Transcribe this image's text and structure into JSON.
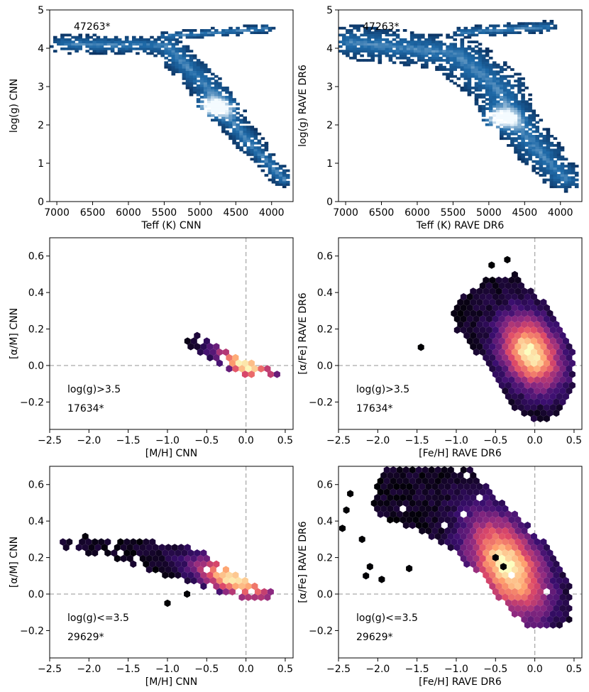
{
  "chart_data": [
    {
      "id": "hrd_cnn",
      "type": "heatmap",
      "xlabel": "Teff (K) CNN",
      "ylabel": "log(g) CNN",
      "xlim": [
        7100,
        3700
      ],
      "ylim": [
        5,
        0
      ],
      "xticks": [
        7000,
        6500,
        6000,
        5500,
        5000,
        4500,
        4000
      ],
      "xticklabels": [
        "7000",
        "6500",
        "6000",
        "5500",
        "5000",
        "4500",
        "4000"
      ],
      "yticks": [
        0,
        1,
        2,
        3,
        4,
        5
      ],
      "yticklabels": [
        "0",
        "1",
        "2",
        "3",
        "4",
        "5"
      ],
      "annotations": [
        "47263*"
      ],
      "colormap": [
        "#0a2e5c",
        "#1f6aa8",
        "#f4fbff"
      ],
      "spine_segments": [
        {
          "t0": 6900,
          "g0": 4.15,
          "t1": 5500,
          "g1": 4.1,
          "w": 0.25
        },
        {
          "t0": 5500,
          "g0": 4.1,
          "t1": 4900,
          "g1": 3.0,
          "w": 0.28
        },
        {
          "t0": 4900,
          "g0": 3.0,
          "t1": 4700,
          "g1": 2.4,
          "w": 0.3
        },
        {
          "t0": 4700,
          "g0": 2.4,
          "t1": 4300,
          "g1": 1.5,
          "w": 0.22
        },
        {
          "t0": 4300,
          "g0": 1.5,
          "t1": 3850,
          "g1": 0.6,
          "w": 0.18
        },
        {
          "t0": 5500,
          "g0": 4.35,
          "t1": 4100,
          "g1": 4.55,
          "w": 0.12
        }
      ],
      "peak": {
        "teff": 4820,
        "logg": 2.48
      }
    },
    {
      "id": "hrd_rave",
      "type": "heatmap",
      "xlabel": "Teff (K) RAVE DR6",
      "ylabel": "log(g) RAVE DR6",
      "xlim": [
        7100,
        3700
      ],
      "ylim": [
        5,
        0
      ],
      "xticks": [
        7000,
        6500,
        6000,
        5500,
        5000,
        4500,
        4000
      ],
      "xticklabels": [
        "7000",
        "6500",
        "6000",
        "5500",
        "5000",
        "4500",
        "4000"
      ],
      "yticks": [
        0,
        1,
        2,
        3,
        4,
        5
      ],
      "yticklabels": [
        "0",
        "1",
        "2",
        "3",
        "4",
        "5"
      ],
      "annotations": [
        "47263*"
      ],
      "colormap": [
        "#0a2e5c",
        "#1f6aa8",
        "#f4fbff"
      ],
      "spine_segments": [
        {
          "t0": 6950,
          "g0": 4.2,
          "t1": 5500,
          "g1": 3.9,
          "w": 0.45
        },
        {
          "t0": 5500,
          "g0": 3.9,
          "t1": 4900,
          "g1": 3.0,
          "w": 0.45
        },
        {
          "t0": 4900,
          "g0": 3.0,
          "t1": 4700,
          "g1": 2.2,
          "w": 0.4
        },
        {
          "t0": 4700,
          "g0": 2.2,
          "t1": 4300,
          "g1": 1.3,
          "w": 0.35
        },
        {
          "t0": 4300,
          "g0": 1.3,
          "t1": 3950,
          "g1": 0.6,
          "w": 0.3
        },
        {
          "t0": 5400,
          "g0": 4.45,
          "t1": 4200,
          "g1": 4.6,
          "w": 0.15
        }
      ],
      "peak": {
        "teff": 4850,
        "logg": 2.2
      }
    },
    {
      "id": "alpha_cnn_dwarfs",
      "type": "scatter",
      "xlabel": "[M/H] CNN",
      "ylabel": "[α/M] CNN",
      "xlim": [
        -2.5,
        0.6
      ],
      "ylim": [
        -0.35,
        0.7
      ],
      "xticks": [
        -2.5,
        -2.0,
        -1.5,
        -1.0,
        -0.5,
        0.0,
        0.5
      ],
      "xticklabels": [
        "−2.5",
        "−2.0",
        "−1.5",
        "−1.0",
        "−0.5",
        "0.0",
        "0.5"
      ],
      "yticks": [
        -0.2,
        0.0,
        0.2,
        0.4,
        0.6
      ],
      "yticklabels": [
        "−0.2",
        "0.0",
        "0.2",
        "0.4",
        "0.6"
      ],
      "annotations": [
        "log(g)>3.5",
        "17634*"
      ],
      "colormap": [
        "#000004",
        "#3b0f70",
        "#8c2981",
        "#de4968",
        "#fe9f6d",
        "#fcfdbf"
      ],
      "polygon": [
        [
          -0.75,
          0.14
        ],
        [
          -0.65,
          0.17
        ],
        [
          -0.2,
          0.08
        ],
        [
          0.3,
          -0.02
        ],
        [
          0.45,
          -0.04
        ],
        [
          0.4,
          -0.07
        ],
        [
          -0.05,
          -0.06
        ],
        [
          -0.55,
          0.05
        ],
        [
          -0.75,
          0.1
        ]
      ],
      "density": {
        "cx": 0.0,
        "cy": 0.0,
        "sx": 0.35,
        "sy": 0.06,
        "slope": -0.18,
        "fill": 0.7
      },
      "outliers": []
    },
    {
      "id": "alpha_rave_dwarfs",
      "type": "scatter",
      "xlabel": "[Fe/H] RAVE DR6",
      "ylabel": "[α/Fe] RAVE DR6",
      "xlim": [
        -2.5,
        0.6
      ],
      "ylim": [
        -0.35,
        0.7
      ],
      "xticks": [
        -2.5,
        -2.0,
        -1.5,
        -1.0,
        -0.5,
        0.0,
        0.5
      ],
      "xticklabels": [
        "−2.5",
        "−2.0",
        "−1.5",
        "−1.0",
        "−0.5",
        "0.0",
        "0.5"
      ],
      "yticks": [
        -0.2,
        0.0,
        0.2,
        0.4,
        0.6
      ],
      "yticklabels": [
        "−0.2",
        "0.0",
        "0.2",
        "0.4",
        "0.6"
      ],
      "annotations": [
        "log(g)>3.5",
        "17634*"
      ],
      "colormap": [
        "#000004",
        "#3b0f70",
        "#8c2981",
        "#de4968",
        "#fe9f6d",
        "#fcfdbf"
      ],
      "polygon": [
        [
          -1.0,
          0.36
        ],
        [
          -0.6,
          0.48
        ],
        [
          -0.25,
          0.5
        ],
        [
          -0.05,
          0.42
        ],
        [
          0.25,
          0.3
        ],
        [
          0.5,
          0.1
        ],
        [
          0.5,
          -0.1
        ],
        [
          0.3,
          -0.28
        ],
        [
          0.0,
          -0.32
        ],
        [
          -0.3,
          -0.22
        ],
        [
          -0.5,
          -0.05
        ],
        [
          -0.7,
          0.05
        ],
        [
          -1.0,
          0.2
        ],
        [
          -1.05,
          0.3
        ]
      ],
      "density": {
        "cx": -0.05,
        "cy": 0.07,
        "sx": 0.35,
        "sy": 0.17,
        "slope": -0.15,
        "fill": 0.88
      },
      "outliers": [
        [
          -1.45,
          0.1
        ],
        [
          -0.35,
          0.58
        ],
        [
          -0.55,
          0.55
        ]
      ]
    },
    {
      "id": "alpha_cnn_giants",
      "type": "scatter",
      "xlabel": "[M/H] CNN",
      "ylabel": "[α/M] CNN",
      "xlim": [
        -2.5,
        0.6
      ],
      "ylim": [
        -0.35,
        0.7
      ],
      "xticks": [
        -2.5,
        -2.0,
        -1.5,
        -1.0,
        -0.5,
        0.0,
        0.5
      ],
      "xticklabels": [
        "−2.5",
        "−2.0",
        "−1.5",
        "−1.0",
        "−0.5",
        "0.0",
        "0.5"
      ],
      "yticks": [
        -0.2,
        0.0,
        0.2,
        0.4,
        0.6
      ],
      "yticklabels": [
        "−0.2",
        "0.0",
        "0.2",
        "0.4",
        "0.6"
      ],
      "annotations": [
        "log(g)<=3.5",
        "29629*"
      ],
      "colormap": [
        "#000004",
        "#3b0f70",
        "#8c2981",
        "#de4968",
        "#fe9f6d",
        "#fcfdbf"
      ],
      "polygon": [
        [
          -2.35,
          0.3
        ],
        [
          -2.0,
          0.32
        ],
        [
          -1.5,
          0.3
        ],
        [
          -1.0,
          0.28
        ],
        [
          -0.5,
          0.24
        ],
        [
          -0.2,
          0.12
        ],
        [
          0.2,
          0.04
        ],
        [
          0.4,
          0.0
        ],
        [
          0.3,
          -0.02
        ],
        [
          -0.2,
          -0.02
        ],
        [
          -0.6,
          0.05
        ],
        [
          -1.2,
          0.12
        ],
        [
          -1.8,
          0.2
        ],
        [
          -2.3,
          0.25
        ]
      ],
      "density": {
        "cx": -0.15,
        "cy": 0.08,
        "sx": 0.45,
        "sy": 0.08,
        "slope": -0.15,
        "fill": 0.72
      },
      "outliers": [
        [
          -1.0,
          -0.05
        ],
        [
          -0.75,
          0.0
        ]
      ]
    },
    {
      "id": "alpha_rave_giants",
      "type": "scatter",
      "xlabel": "[Fe/H] RAVE DR6",
      "ylabel": "[α/Fe] RAVE DR6",
      "xlim": [
        -2.5,
        0.6
      ],
      "ylim": [
        -0.35,
        0.7
      ],
      "xticks": [
        -2.5,
        -2.0,
        -1.5,
        -1.0,
        -0.5,
        0.0,
        0.5
      ],
      "xticklabels": [
        "−2.5",
        "−2.0",
        "−1.5",
        "−1.0",
        "−0.5",
        "0.0",
        "0.5"
      ],
      "yticks": [
        -0.2,
        0.0,
        0.2,
        0.4,
        0.6
      ],
      "yticklabels": [
        "−0.2",
        "0.0",
        "0.2",
        "0.4",
        "0.6"
      ],
      "annotations": [
        "log(g)<=3.5",
        "29629*"
      ],
      "colormap": [
        "#000004",
        "#3b0f70",
        "#8c2981",
        "#de4968",
        "#fe9f6d",
        "#fcfdbf"
      ],
      "polygon": [
        [
          -1.9,
          0.7
        ],
        [
          -1.2,
          0.7
        ],
        [
          -0.8,
          0.68
        ],
        [
          -0.4,
          0.5
        ],
        [
          0.0,
          0.35
        ],
        [
          0.3,
          0.2
        ],
        [
          0.45,
          0.05
        ],
        [
          0.45,
          -0.15
        ],
        [
          0.2,
          -0.2
        ],
        [
          -0.1,
          -0.18
        ],
        [
          -0.4,
          -0.05
        ],
        [
          -0.7,
          0.1
        ],
        [
          -1.1,
          0.25
        ],
        [
          -1.5,
          0.35
        ],
        [
          -1.9,
          0.4
        ],
        [
          -2.1,
          0.5
        ]
      ],
      "density": {
        "cx": -0.35,
        "cy": 0.15,
        "sx": 0.45,
        "sy": 0.22,
        "slope": -0.25,
        "fill": 0.85
      },
      "outliers": [
        [
          -2.45,
          0.36
        ],
        [
          -2.4,
          0.46
        ],
        [
          -2.35,
          0.55
        ],
        [
          -2.2,
          0.3
        ],
        [
          -2.1,
          0.15
        ],
        [
          -2.15,
          0.1
        ],
        [
          -1.95,
          0.08
        ],
        [
          -1.6,
          0.14
        ],
        [
          -0.5,
          0.2
        ],
        [
          -0.4,
          0.15
        ]
      ]
    }
  ]
}
